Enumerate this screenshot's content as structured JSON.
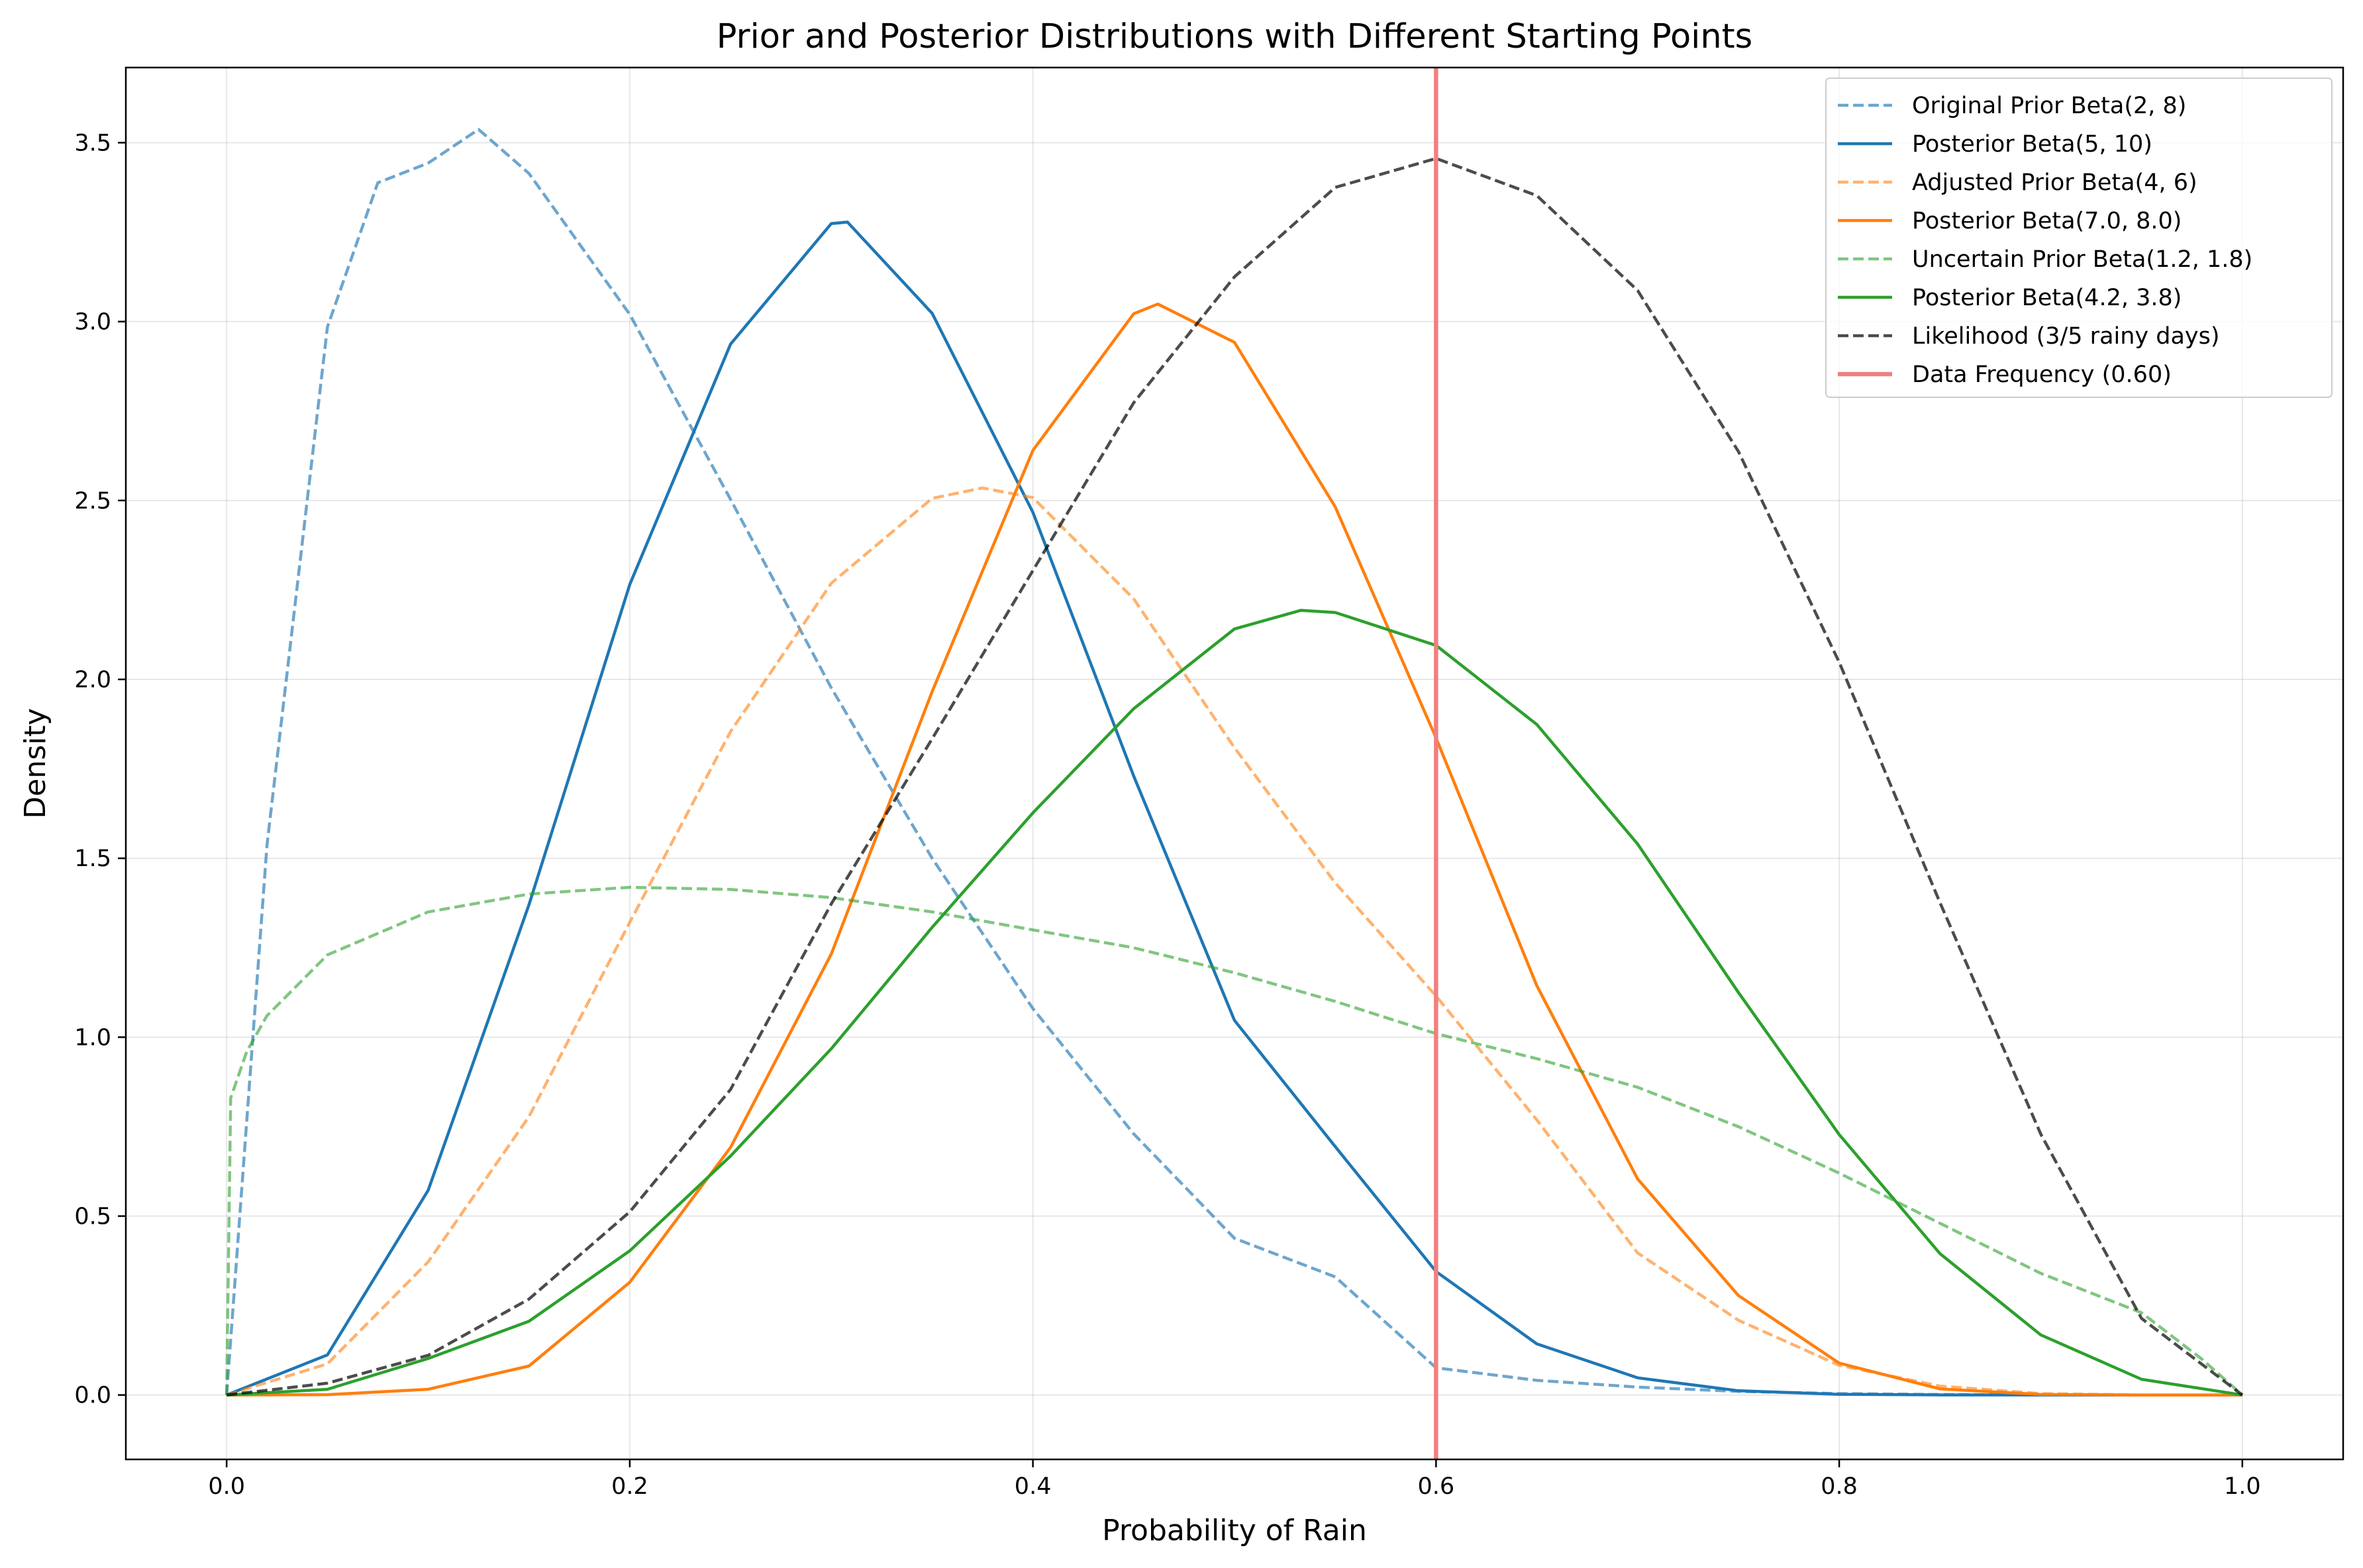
{
  "chart_data": {
    "type": "line",
    "title": "Prior and Posterior Distributions with Different Starting Points",
    "xlabel": "Probability of Rain",
    "ylabel": "Density",
    "xlim": [
      -0.05,
      1.05
    ],
    "ylim": [
      -0.18,
      3.71
    ],
    "xticks": [
      0.0,
      0.2,
      0.4,
      0.6,
      0.8,
      1.0
    ],
    "xtick_labels": [
      "0.0",
      "0.2",
      "0.4",
      "0.6",
      "0.8",
      "1.0"
    ],
    "yticks": [
      0.0,
      0.5,
      1.0,
      1.5,
      2.0,
      2.5,
      3.0,
      3.5
    ],
    "ytick_labels": [
      "0.0",
      "0.5",
      "1.0",
      "1.5",
      "2.0",
      "2.5",
      "3.0",
      "3.5"
    ],
    "grid": true,
    "legend_position": "top-right",
    "series": [
      {
        "name": "Original Prior Beta(2, 8)",
        "color": "#1f77b4",
        "opacity": 0.65,
        "dashed": true,
        "x": [
          0.0,
          0.02,
          0.05,
          0.075,
          0.1,
          0.125,
          0.15,
          0.2,
          0.25,
          0.3,
          0.35,
          0.4,
          0.45,
          0.5,
          0.55,
          0.6,
          0.65,
          0.7,
          0.75,
          0.8,
          0.85,
          0.9,
          0.95,
          1.0
        ],
        "y": [
          0.0,
          1.536,
          2.985,
          3.388,
          3.443,
          3.537,
          3.414,
          3.02,
          2.503,
          1.976,
          1.5,
          1.08,
          0.73,
          0.438,
          0.33,
          0.076,
          0.041,
          0.022,
          0.01,
          0.004,
          0.0014,
          0.0003,
          0.0,
          0.0
        ]
      },
      {
        "name": "Posterior Beta(5, 10)",
        "color": "#1f77b4",
        "opacity": 1,
        "dashed": false,
        "x": [
          0.0,
          0.05,
          0.1,
          0.15,
          0.2,
          0.25,
          0.3,
          0.308,
          0.35,
          0.4,
          0.45,
          0.5,
          0.55,
          0.6,
          0.65,
          0.7,
          0.75,
          0.8,
          0.85,
          0.9,
          0.95,
          1.0
        ],
        "y": [
          0.0,
          0.112,
          0.572,
          1.37,
          2.265,
          2.937,
          3.274,
          3.278,
          3.023,
          2.467,
          1.73,
          1.047,
          0.694,
          0.345,
          0.143,
          0.048,
          0.012,
          0.002,
          0.0003,
          0.0,
          0.0,
          0.0
        ]
      },
      {
        "name": "Adjusted Prior Beta(4, 6)",
        "color": "#ff7f0e",
        "opacity": 0.6,
        "dashed": true,
        "x": [
          0.0,
          0.05,
          0.1,
          0.15,
          0.2,
          0.25,
          0.3,
          0.35,
          0.375,
          0.4,
          0.45,
          0.5,
          0.55,
          0.6,
          0.65,
          0.7,
          0.75,
          0.8,
          0.85,
          0.9,
          0.95,
          1.0
        ],
        "y": [
          0.0,
          0.087,
          0.372,
          0.778,
          1.321,
          1.854,
          2.269,
          2.506,
          2.535,
          2.508,
          2.225,
          1.809,
          1.431,
          1.115,
          0.769,
          0.397,
          0.209,
          0.083,
          0.025,
          0.004,
          0.0003,
          0.0
        ]
      },
      {
        "name": "Posterior Beta(7.0, 8.0)",
        "color": "#ff7f0e",
        "opacity": 1,
        "dashed": false,
        "x": [
          0.0,
          0.05,
          0.1,
          0.15,
          0.2,
          0.25,
          0.3,
          0.35,
          0.4,
          0.45,
          0.462,
          0.5,
          0.55,
          0.6,
          0.65,
          0.7,
          0.75,
          0.8,
          0.85,
          0.9,
          0.95,
          1.0
        ],
        "y": [
          0.0,
          0.001,
          0.016,
          0.081,
          0.315,
          0.692,
          1.233,
          1.966,
          2.64,
          3.022,
          3.049,
          2.942,
          2.482,
          1.836,
          1.144,
          0.604,
          0.278,
          0.089,
          0.017,
          0.0016,
          0.0,
          0.0
        ]
      },
      {
        "name": "Uncertain Prior Beta(1.2, 1.8)",
        "color": "#2ca02c",
        "opacity": 0.6,
        "dashed": true,
        "x": [
          0.0,
          0.002,
          0.01,
          0.02,
          0.05,
          0.1,
          0.15,
          0.2,
          0.25,
          0.3,
          0.35,
          0.4,
          0.45,
          0.5,
          0.55,
          0.6,
          0.65,
          0.7,
          0.75,
          0.8,
          0.85,
          0.9,
          0.95,
          0.98,
          1.0
        ],
        "y": [
          0.0,
          0.83,
          0.96,
          1.06,
          1.23,
          1.35,
          1.4,
          1.419,
          1.413,
          1.39,
          1.35,
          1.3,
          1.25,
          1.18,
          1.1,
          1.01,
          0.94,
          0.86,
          0.75,
          0.62,
          0.48,
          0.34,
          0.23,
          0.1,
          0.0
        ]
      },
      {
        "name": "Posterior Beta(4.2, 3.8)",
        "color": "#2ca02c",
        "opacity": 1,
        "dashed": false,
        "x": [
          0.0,
          0.05,
          0.1,
          0.15,
          0.2,
          0.25,
          0.3,
          0.35,
          0.4,
          0.45,
          0.5,
          0.533,
          0.55,
          0.6,
          0.65,
          0.7,
          0.75,
          0.8,
          0.85,
          0.9,
          0.95,
          1.0
        ],
        "y": [
          0.0,
          0.016,
          0.102,
          0.206,
          0.403,
          0.668,
          0.968,
          1.307,
          1.627,
          1.918,
          2.141,
          2.193,
          2.187,
          2.095,
          1.874,
          1.54,
          1.125,
          0.728,
          0.395,
          0.168,
          0.044,
          0.0
        ]
      },
      {
        "name": "Likelihood (3/5 rainy days)",
        "color": "#000000",
        "opacity": 0.7,
        "dashed": true,
        "x": [
          0.0,
          0.05,
          0.1,
          0.15,
          0.2,
          0.25,
          0.3,
          0.35,
          0.4,
          0.45,
          0.5,
          0.55,
          0.6,
          0.65,
          0.7,
          0.75,
          0.8,
          0.85,
          0.9,
          0.95,
          1.0
        ],
        "y": [
          0.0,
          0.033,
          0.111,
          0.268,
          0.512,
          0.854,
          1.373,
          1.834,
          2.304,
          2.773,
          3.125,
          3.375,
          3.456,
          3.352,
          3.087,
          2.637,
          2.048,
          1.376,
          0.729,
          0.214,
          0.0
        ]
      }
    ],
    "vlines": [
      {
        "name": "Data Frequency (0.60)",
        "x": 0.6,
        "color": "#f08080",
        "opacity": 1
      }
    ]
  }
}
